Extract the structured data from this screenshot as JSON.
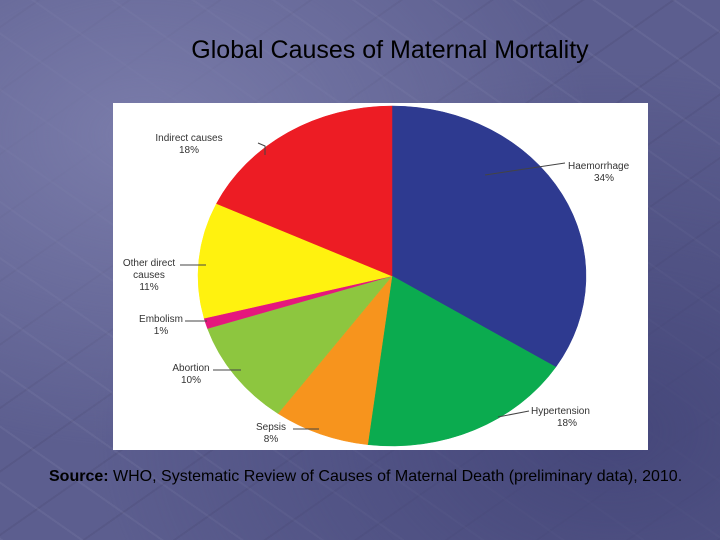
{
  "slide": {
    "title": "Global Causes of Maternal Mortality",
    "source_label": "Source:",
    "source_text": " WHO, Systematic Review of Causes of Maternal Death (preliminary data), 2010."
  },
  "chart_data": {
    "type": "pie",
    "title": "",
    "slices": [
      {
        "label": "Haemorrhage",
        "value": 34,
        "display": "34%",
        "color": "#2e3a90"
      },
      {
        "label": "Hypertension",
        "value": 18,
        "display": "18%",
        "color": "#0bab4f"
      },
      {
        "label": "Sepsis",
        "value": 8,
        "display": "8%",
        "color": "#f7941d"
      },
      {
        "label": "Abortion",
        "value": 10,
        "display": "10%",
        "color": "#8dc63f"
      },
      {
        "label": "Embolism",
        "value": 1,
        "display": "1%",
        "color": "#e5177d"
      },
      {
        "label": "Other direct causes",
        "value": 11,
        "display": "11%",
        "color": "#fff20f"
      },
      {
        "label": "Indirect causes",
        "value": 18,
        "display": "18%",
        "color": "#ed1c24"
      }
    ]
  }
}
